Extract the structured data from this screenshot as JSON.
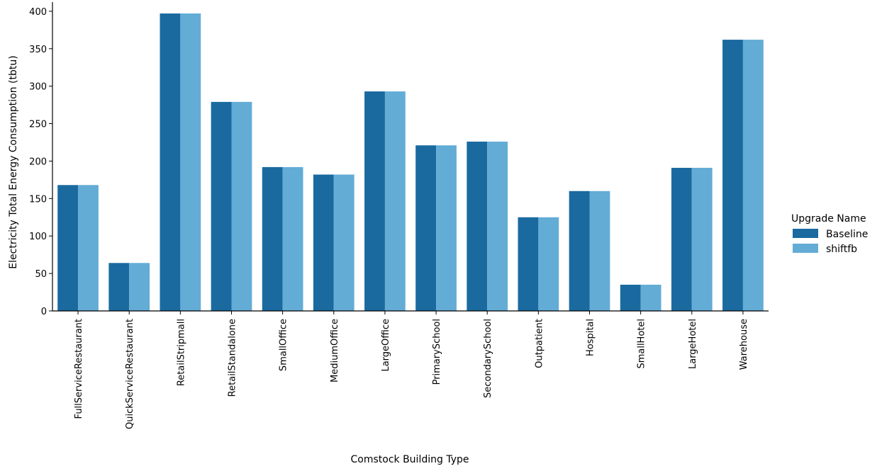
{
  "chart_data": {
    "type": "bar",
    "title": "",
    "xlabel": "Comstock Building Type",
    "ylabel": "Electricity Total Energy Consumption (tbtu)",
    "ylim": [
      0,
      415
    ],
    "yticks": [
      0,
      50,
      100,
      150,
      200,
      250,
      300,
      350,
      400
    ],
    "grid": false,
    "legend_position": "right",
    "legend_title": "Upgrade Name",
    "categories": [
      "FullServiceRestaurant",
      "QuickServiceRestaurant",
      "RetailStripmall",
      "RetailStandalone",
      "SmallOffice",
      "MediumOffice",
      "LargeOffice",
      "PrimarySchool",
      "SecondarySchool",
      "Outpatient",
      "Hospital",
      "SmallHotel",
      "LargeHotel",
      "Warehouse"
    ],
    "series": [
      {
        "name": "Baseline",
        "color": "#1a6aa0",
        "values": [
          168,
          64,
          397,
          279,
          192,
          182,
          293,
          221,
          226,
          125,
          160,
          35,
          191,
          362
        ]
      },
      {
        "name": "shiftfb",
        "color": "#63acd6",
        "values": [
          168,
          64,
          397,
          279,
          192,
          182,
          293,
          221,
          226,
          125,
          160,
          35,
          191,
          362
        ]
      }
    ]
  }
}
